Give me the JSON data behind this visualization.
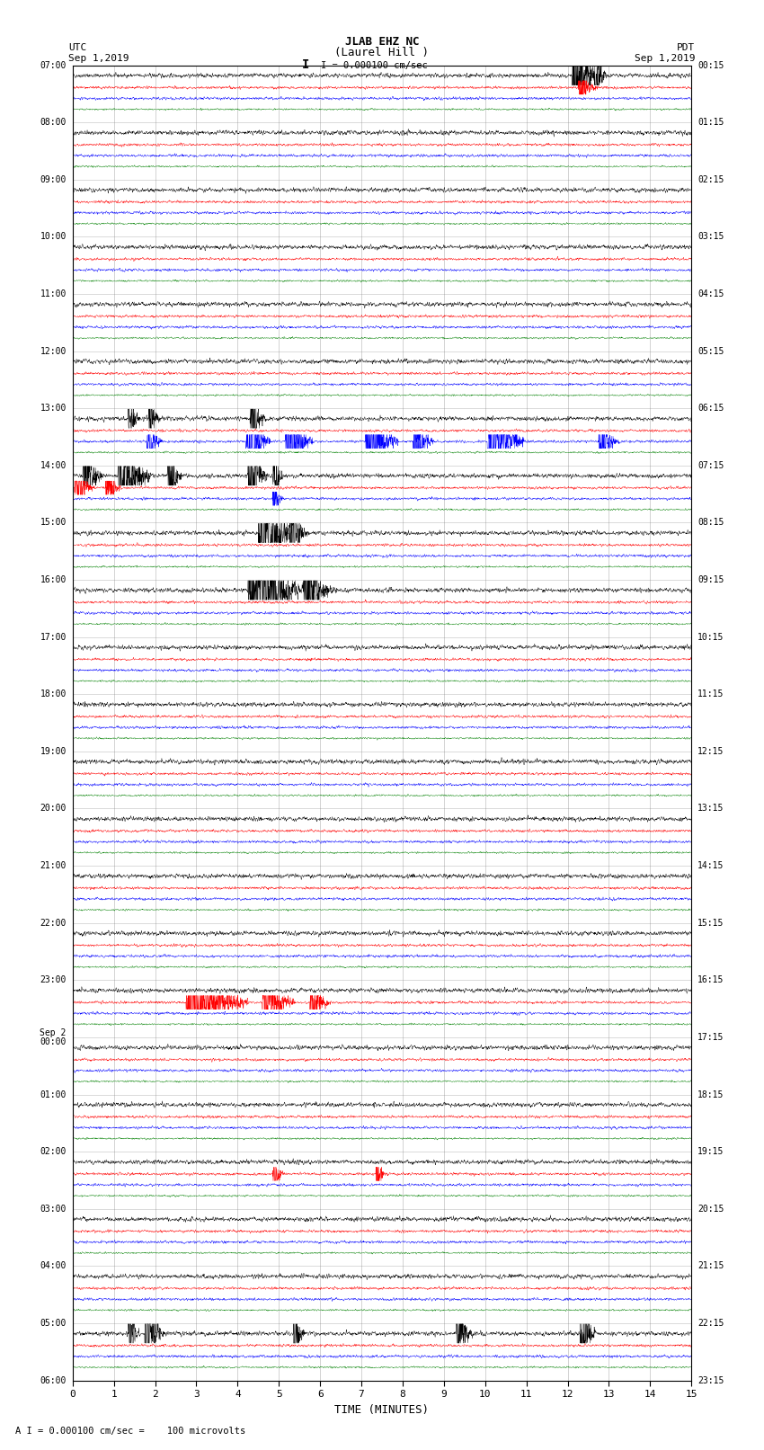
{
  "title_line1": "JLAB EHZ NC",
  "title_line2": "(Laurel Hill )",
  "scale_text": "I = 0.000100 cm/sec",
  "footer_text": "A I = 0.000100 cm/sec =    100 microvolts",
  "xlabel": "TIME (MINUTES)",
  "left_label_top": "UTC",
  "left_label_date": "Sep 1,2019",
  "right_label_top": "PDT",
  "right_label_date": "Sep 1,2019",
  "num_rows": 23,
  "colors": [
    "black",
    "red",
    "blue",
    "green"
  ],
  "fig_width": 8.5,
  "fig_height": 16.13,
  "dpi": 100,
  "bg_color": "white",
  "x_ticks": [
    0,
    1,
    2,
    3,
    4,
    5,
    6,
    7,
    8,
    9,
    10,
    11,
    12,
    13,
    14,
    15
  ],
  "x_lim": [
    0,
    15
  ],
  "utc_labels": [
    "07:00",
    "08:00",
    "09:00",
    "10:00",
    "11:00",
    "12:00",
    "13:00",
    "14:00",
    "15:00",
    "16:00",
    "17:00",
    "18:00",
    "19:00",
    "20:00",
    "21:00",
    "22:00",
    "23:00",
    "Sep 2\n00:00",
    "01:00",
    "02:00",
    "03:00",
    "04:00",
    "05:00",
    "06:00"
  ],
  "pdt_labels": [
    "00:15",
    "01:15",
    "02:15",
    "03:15",
    "04:15",
    "05:15",
    "06:15",
    "07:15",
    "08:15",
    "09:15",
    "10:15",
    "11:15",
    "12:15",
    "13:15",
    "14:15",
    "15:15",
    "16:15",
    "17:15",
    "18:15",
    "19:15",
    "20:15",
    "21:15",
    "22:15",
    "23:15"
  ],
  "noise_scales": [
    0.03,
    0.018,
    0.018,
    0.012
  ],
  "channel_offsets": [
    0.82,
    0.61,
    0.42,
    0.23
  ],
  "channel_amplitudes": [
    0.14,
    0.1,
    0.1,
    0.08
  ]
}
